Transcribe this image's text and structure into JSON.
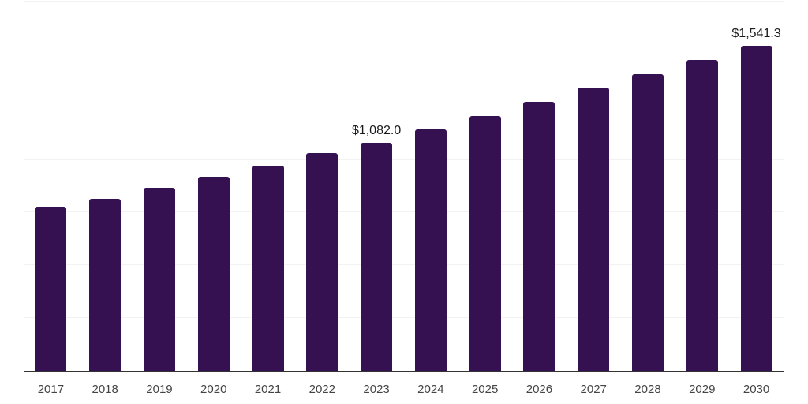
{
  "chart_data": {
    "type": "bar",
    "title": "",
    "xlabel": "",
    "ylabel": "",
    "categories": [
      "2017",
      "2018",
      "2019",
      "2020",
      "2021",
      "2022",
      "2023",
      "2024",
      "2025",
      "2026",
      "2027",
      "2028",
      "2029",
      "2030"
    ],
    "values": [
      776,
      816,
      867,
      920,
      971,
      1032,
      1082.0,
      1146,
      1208,
      1276,
      1342,
      1407,
      1475,
      1541.3
    ],
    "data_labels": {
      "2023": "$1,082.0",
      "2030": "$1,541.3"
    },
    "ylim": [
      0,
      1750
    ],
    "gridline_interval": 250,
    "grid": "horizontal",
    "legend": "none",
    "colors": {
      "bar": "#351151",
      "gridline": "#f2f2f2",
      "axis_line": "#333333",
      "tick_label": "#444444",
      "data_label": "#1a1a1a",
      "background": "#ffffff"
    }
  }
}
